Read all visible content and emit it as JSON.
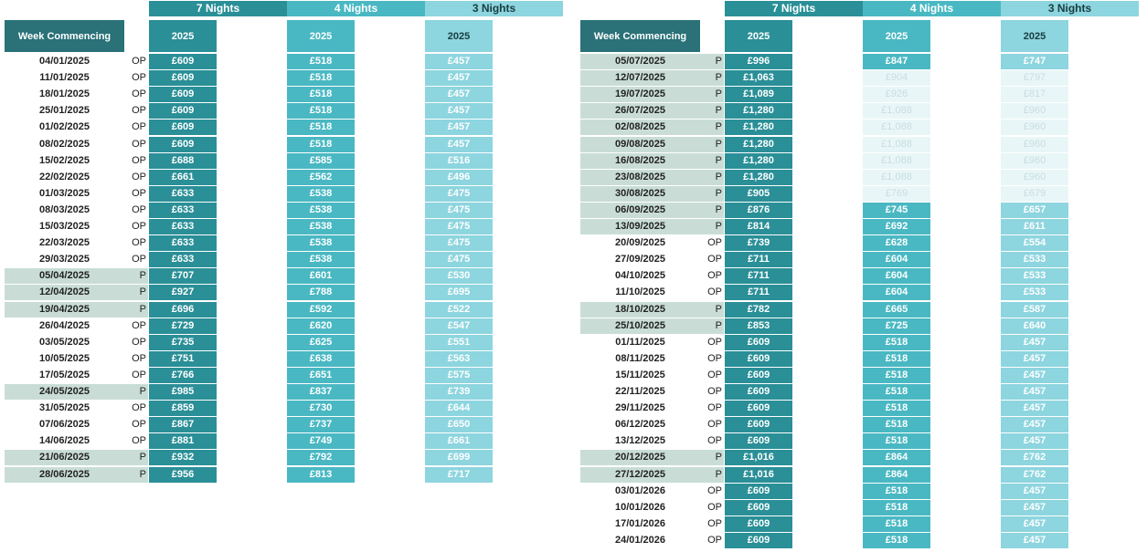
{
  "group_headers": {
    "seven": "7 Nights",
    "four": "4 Nights",
    "three": "3 Nights"
  },
  "column_headers": {
    "week": "Week Commencing",
    "year": "2025"
  },
  "left_table": [
    {
      "date": "04/01/2025",
      "band": "OP",
      "p7": "£609",
      "p4": "£518",
      "p3": "£457"
    },
    {
      "date": "11/01/2025",
      "band": "OP",
      "p7": "£609",
      "p4": "£518",
      "p3": "£457"
    },
    {
      "date": "18/01/2025",
      "band": "OP",
      "p7": "£609",
      "p4": "£518",
      "p3": "£457"
    },
    {
      "date": "25/01/2025",
      "band": "OP",
      "p7": "£609",
      "p4": "£518",
      "p3": "£457"
    },
    {
      "date": "01/02/2025",
      "band": "OP",
      "p7": "£609",
      "p4": "£518",
      "p3": "£457"
    },
    {
      "date": "08/02/2025",
      "band": "OP",
      "p7": "£609",
      "p4": "£518",
      "p3": "£457"
    },
    {
      "date": "15/02/2025",
      "band": "OP",
      "p7": "£688",
      "p4": "£585",
      "p3": "£516"
    },
    {
      "date": "22/02/2025",
      "band": "OP",
      "p7": "£661",
      "p4": "£562",
      "p3": "£496"
    },
    {
      "date": "01/03/2025",
      "band": "OP",
      "p7": "£633",
      "p4": "£538",
      "p3": "£475"
    },
    {
      "date": "08/03/2025",
      "band": "OP",
      "p7": "£633",
      "p4": "£538",
      "p3": "£475"
    },
    {
      "date": "15/03/2025",
      "band": "OP",
      "p7": "£633",
      "p4": "£538",
      "p3": "£475"
    },
    {
      "date": "22/03/2025",
      "band": "OP",
      "p7": "£633",
      "p4": "£538",
      "p3": "£475"
    },
    {
      "date": "29/03/2025",
      "band": "OP",
      "p7": "£633",
      "p4": "£538",
      "p3": "£475"
    },
    {
      "date": "05/04/2025",
      "band": "P",
      "p7": "£707",
      "p4": "£601",
      "p3": "£530"
    },
    {
      "date": "12/04/2025",
      "band": "P",
      "p7": "£927",
      "p4": "£788",
      "p3": "£695"
    },
    {
      "date": "19/04/2025",
      "band": "P",
      "p7": "£696",
      "p4": "£592",
      "p3": "£522"
    },
    {
      "date": "26/04/2025",
      "band": "OP",
      "p7": "£729",
      "p4": "£620",
      "p3": "£547"
    },
    {
      "date": "03/05/2025",
      "band": "OP",
      "p7": "£735",
      "p4": "£625",
      "p3": "£551"
    },
    {
      "date": "10/05/2025",
      "band": "OP",
      "p7": "£751",
      "p4": "£638",
      "p3": "£563"
    },
    {
      "date": "17/05/2025",
      "band": "OP",
      "p7": "£766",
      "p4": "£651",
      "p3": "£575"
    },
    {
      "date": "24/05/2025",
      "band": "P",
      "p7": "£985",
      "p4": "£837",
      "p3": "£739"
    },
    {
      "date": "31/05/2025",
      "band": "OP",
      "p7": "£859",
      "p4": "£730",
      "p3": "£644"
    },
    {
      "date": "07/06/2025",
      "band": "OP",
      "p7": "£867",
      "p4": "£737",
      "p3": "£650"
    },
    {
      "date": "14/06/2025",
      "band": "OP",
      "p7": "£881",
      "p4": "£749",
      "p3": "£661"
    },
    {
      "date": "21/06/2025",
      "band": "P",
      "p7": "£932",
      "p4": "£792",
      "p3": "£699"
    },
    {
      "date": "28/06/2025",
      "band": "P",
      "p7": "£956",
      "p4": "£813",
      "p3": "£717"
    }
  ],
  "right_table": [
    {
      "date": "05/07/2025",
      "band": "P",
      "p7": "£996",
      "p4": "£847",
      "p3": "£747",
      "faded": false
    },
    {
      "date": "12/07/2025",
      "band": "P",
      "p7": "£1,063",
      "p4": "£904",
      "p3": "£797",
      "faded": true
    },
    {
      "date": "19/07/2025",
      "band": "P",
      "p7": "£1,089",
      "p4": "£926",
      "p3": "£817",
      "faded": true
    },
    {
      "date": "26/07/2025",
      "band": "P",
      "p7": "£1,280",
      "p4": "£1,088",
      "p3": "£960",
      "faded": true
    },
    {
      "date": "02/08/2025",
      "band": "P",
      "p7": "£1,280",
      "p4": "£1,088",
      "p3": "£960",
      "faded": true
    },
    {
      "date": "09/08/2025",
      "band": "P",
      "p7": "£1,280",
      "p4": "£1,088",
      "p3": "£960",
      "faded": true
    },
    {
      "date": "16/08/2025",
      "band": "P",
      "p7": "£1,280",
      "p4": "£1,088",
      "p3": "£960",
      "faded": true
    },
    {
      "date": "23/08/2025",
      "band": "P",
      "p7": "£1,280",
      "p4": "£1,088",
      "p3": "£960",
      "faded": true
    },
    {
      "date": "30/08/2025",
      "band": "P",
      "p7": "£905",
      "p4": "£769",
      "p3": "£679",
      "faded": true
    },
    {
      "date": "06/09/2025",
      "band": "P",
      "p7": "£876",
      "p4": "£745",
      "p3": "£657",
      "faded": false
    },
    {
      "date": "13/09/2025",
      "band": "P",
      "p7": "£814",
      "p4": "£692",
      "p3": "£611",
      "faded": false
    },
    {
      "date": "20/09/2025",
      "band": "OP",
      "p7": "£739",
      "p4": "£628",
      "p3": "£554",
      "faded": false
    },
    {
      "date": "27/09/2025",
      "band": "OP",
      "p7": "£711",
      "p4": "£604",
      "p3": "£533",
      "faded": false
    },
    {
      "date": "04/10/2025",
      "band": "OP",
      "p7": "£711",
      "p4": "£604",
      "p3": "£533",
      "faded": false
    },
    {
      "date": "11/10/2025",
      "band": "OP",
      "p7": "£711",
      "p4": "£604",
      "p3": "£533",
      "faded": false
    },
    {
      "date": "18/10/2025",
      "band": "P",
      "p7": "£782",
      "p4": "£665",
      "p3": "£587",
      "faded": false
    },
    {
      "date": "25/10/2025",
      "band": "P",
      "p7": "£853",
      "p4": "£725",
      "p3": "£640",
      "faded": false
    },
    {
      "date": "01/11/2025",
      "band": "OP",
      "p7": "£609",
      "p4": "£518",
      "p3": "£457",
      "faded": false
    },
    {
      "date": "08/11/2025",
      "band": "OP",
      "p7": "£609",
      "p4": "£518",
      "p3": "£457",
      "faded": false
    },
    {
      "date": "15/11/2025",
      "band": "OP",
      "p7": "£609",
      "p4": "£518",
      "p3": "£457",
      "faded": false
    },
    {
      "date": "22/11/2025",
      "band": "OP",
      "p7": "£609",
      "p4": "£518",
      "p3": "£457",
      "faded": false
    },
    {
      "date": "29/11/2025",
      "band": "OP",
      "p7": "£609",
      "p4": "£518",
      "p3": "£457",
      "faded": false
    },
    {
      "date": "06/12/2025",
      "band": "OP",
      "p7": "£609",
      "p4": "£518",
      "p3": "£457",
      "faded": false
    },
    {
      "date": "13/12/2025",
      "band": "OP",
      "p7": "£609",
      "p4": "£518",
      "p3": "£457",
      "faded": false
    },
    {
      "date": "20/12/2025",
      "band": "P",
      "p7": "£1,016",
      "p4": "£864",
      "p3": "£762",
      "faded": false
    },
    {
      "date": "27/12/2025",
      "band": "P",
      "p7": "£1,016",
      "p4": "£864",
      "p3": "£762",
      "faded": false
    },
    {
      "date": "03/01/2026",
      "band": "OP",
      "p7": "£609",
      "p4": "£518",
      "p3": "£457",
      "faded": false
    },
    {
      "date": "10/01/2026",
      "band": "OP",
      "p7": "£609",
      "p4": "£518",
      "p3": "£457",
      "faded": false
    },
    {
      "date": "17/01/2026",
      "band": "OP",
      "p7": "£609",
      "p4": "£518",
      "p3": "£457",
      "faded": false
    },
    {
      "date": "24/01/2026",
      "band": "OP",
      "p7": "£609",
      "p4": "£518",
      "p3": "£457",
      "faded": false
    }
  ]
}
